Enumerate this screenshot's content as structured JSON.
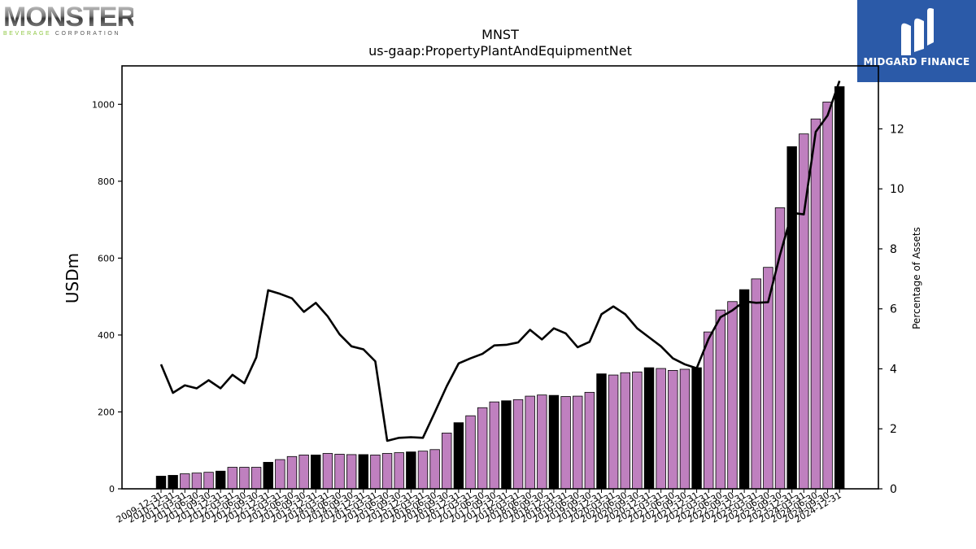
{
  "logos": {
    "left": {
      "word": "MONSTER",
      "sub_a": "BEVERAGE",
      "sub_b": "CORPORATION"
    },
    "right": {
      "text": "MIDGARD FINANCE",
      "icon": "midgard-logo-icon"
    }
  },
  "colors": {
    "bar_default": "#bf80bf",
    "bar_year_end": "#000000",
    "line": "#000000"
  },
  "chart_data": {
    "type": "bar",
    "title": "MNST",
    "subtitle": "us-gaap:PropertyPlantAndEquipmentNet",
    "ylabel": "USDm",
    "y2label": "Percentage of Assets",
    "ylim": [
      0,
      1100
    ],
    "y2lim": [
      0,
      14.1
    ],
    "yticks": [
      0,
      200,
      400,
      600,
      800,
      1000
    ],
    "y2ticks": [
      0,
      2,
      4,
      6,
      8,
      10,
      12
    ],
    "grid": false,
    "x": [
      "2009-12-31",
      "2010-12-31",
      "2011-03-31",
      "2011-06-30",
      "2011-09-30",
      "2011-12-31",
      "2012-03-31",
      "2012-06-30",
      "2012-09-30",
      "2012-12-31",
      "2013-03-31",
      "2013-06-30",
      "2013-09-30",
      "2013-12-31",
      "2014-03-31",
      "2014-06-30",
      "2014-09-30",
      "2014-12-31",
      "2015-03-31",
      "2015-06-30",
      "2015-09-30",
      "2015-12-31",
      "2016-03-31",
      "2016-06-30",
      "2016-09-30",
      "2016-12-31",
      "2017-03-31",
      "2017-06-30",
      "2017-09-30",
      "2017-12-31",
      "2018-03-31",
      "2018-06-30",
      "2018-09-30",
      "2018-12-31",
      "2019-03-31",
      "2019-06-30",
      "2019-09-30",
      "2019-12-31",
      "2020-03-31",
      "2020-06-30",
      "2020-09-30",
      "2020-12-31",
      "2021-03-31",
      "2021-06-30",
      "2021-09-30",
      "2021-12-31",
      "2022-03-31",
      "2022-06-30",
      "2022-09-30",
      "2022-12-31",
      "2023-03-31",
      "2023-06-30",
      "2023-09-30",
      "2023-12-31",
      "2024-03-31",
      "2024-06-30",
      "2024-09-30",
      "2024-12-31"
    ],
    "series": [
      {
        "kind": "bar",
        "axis": "left",
        "values": [
          33,
          35,
          39,
          41,
          43,
          46,
          56,
          56,
          56,
          69,
          76,
          84,
          88,
          88,
          92,
          90,
          89,
          89,
          88,
          92,
          94,
          96,
          98,
          102,
          145,
          172,
          190,
          211,
          226,
          229,
          232,
          241,
          244,
          243,
          240,
          241,
          251,
          299,
          296,
          302,
          304,
          315,
          313,
          308,
          311,
          315,
          408,
          465,
          487,
          518,
          546,
          576,
          731,
          890,
          923,
          962,
          1006,
          1046
        ],
        "year_end": [
          true,
          true,
          false,
          false,
          false,
          true,
          false,
          false,
          false,
          true,
          false,
          false,
          false,
          true,
          false,
          false,
          false,
          true,
          false,
          false,
          false,
          true,
          false,
          false,
          false,
          true,
          false,
          false,
          false,
          true,
          false,
          false,
          false,
          true,
          false,
          false,
          false,
          true,
          false,
          false,
          false,
          true,
          false,
          false,
          false,
          true,
          false,
          false,
          false,
          true,
          false,
          false,
          false,
          true,
          false,
          false,
          false,
          true
        ]
      },
      {
        "kind": "line",
        "axis": "right",
        "values": [
          4.15,
          3.2,
          3.45,
          3.35,
          3.62,
          3.35,
          3.8,
          3.52,
          4.38,
          6.62,
          6.5,
          6.35,
          5.9,
          6.2,
          5.75,
          5.15,
          4.75,
          4.65,
          4.25,
          1.6,
          1.7,
          1.72,
          1.7,
          2.55,
          3.42,
          4.18,
          4.35,
          4.5,
          4.78,
          4.8,
          4.88,
          5.3,
          4.98,
          5.35,
          5.18,
          4.72,
          4.9,
          5.82,
          6.08,
          5.82,
          5.35,
          5.05,
          4.75,
          4.35,
          4.15,
          4.02,
          5.0,
          5.72,
          5.95,
          6.25,
          6.2,
          6.22,
          7.8,
          9.2,
          9.15,
          11.9,
          12.45,
          13.6
        ]
      }
    ]
  }
}
